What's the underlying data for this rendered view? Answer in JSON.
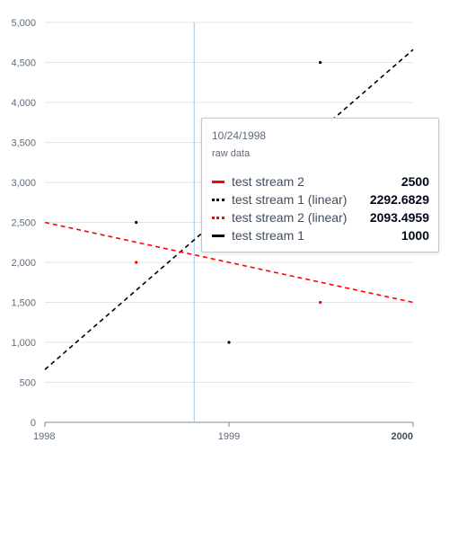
{
  "chart_data": {
    "type": "scatter",
    "x_ticks": [
      "1998",
      "1999",
      "2000"
    ],
    "y_ticks": [
      "0",
      "500",
      "1,000",
      "1,500",
      "2,000",
      "2,500",
      "3,000",
      "3,500",
      "4,000",
      "4,500",
      "5,000"
    ],
    "xlim": [
      "1998-01-01",
      "2000-01-01"
    ],
    "ylim": [
      0,
      5000
    ],
    "grid": "horizontal",
    "series": [
      {
        "name": "test stream 1",
        "kind": "points",
        "color": "#000000",
        "points": [
          [
            "1998-07-01",
            2500
          ],
          [
            "1999-01-01",
            1000
          ],
          [
            "1999-07-01",
            4500
          ]
        ]
      },
      {
        "name": "test stream 2",
        "kind": "points",
        "color": "#ff0000",
        "points": [
          [
            "1998-07-01",
            2000
          ],
          [
            "1999-07-01",
            1500
          ]
        ]
      },
      {
        "name": "test stream 1 (linear)",
        "kind": "trendline",
        "color": "#000000",
        "points": [
          [
            "1998-01-01",
            660
          ],
          [
            "2000-01-01",
            4660
          ]
        ]
      },
      {
        "name": "test stream 2 (linear)",
        "kind": "trendline",
        "color": "#ff0000",
        "points": [
          [
            "1998-01-01",
            2500
          ],
          [
            "2000-01-01",
            1500
          ]
        ]
      }
    ],
    "crosshair_x": "1998-10-24",
    "tooltip": {
      "date": "10/24/1998",
      "subtitle": "raw data",
      "rows": [
        {
          "name": "test stream 2",
          "value": "2500",
          "color": "#ff0000",
          "style": "solid"
        },
        {
          "name": "test stream 1 (linear)",
          "value": "2292.6829",
          "color": "#000000",
          "style": "dashed"
        },
        {
          "name": "test stream 2 (linear)",
          "value": "2093.4959",
          "color": "#ff0000",
          "style": "dashed"
        },
        {
          "name": "test stream 1",
          "value": "1000",
          "color": "#000000",
          "style": "solid"
        }
      ]
    }
  }
}
